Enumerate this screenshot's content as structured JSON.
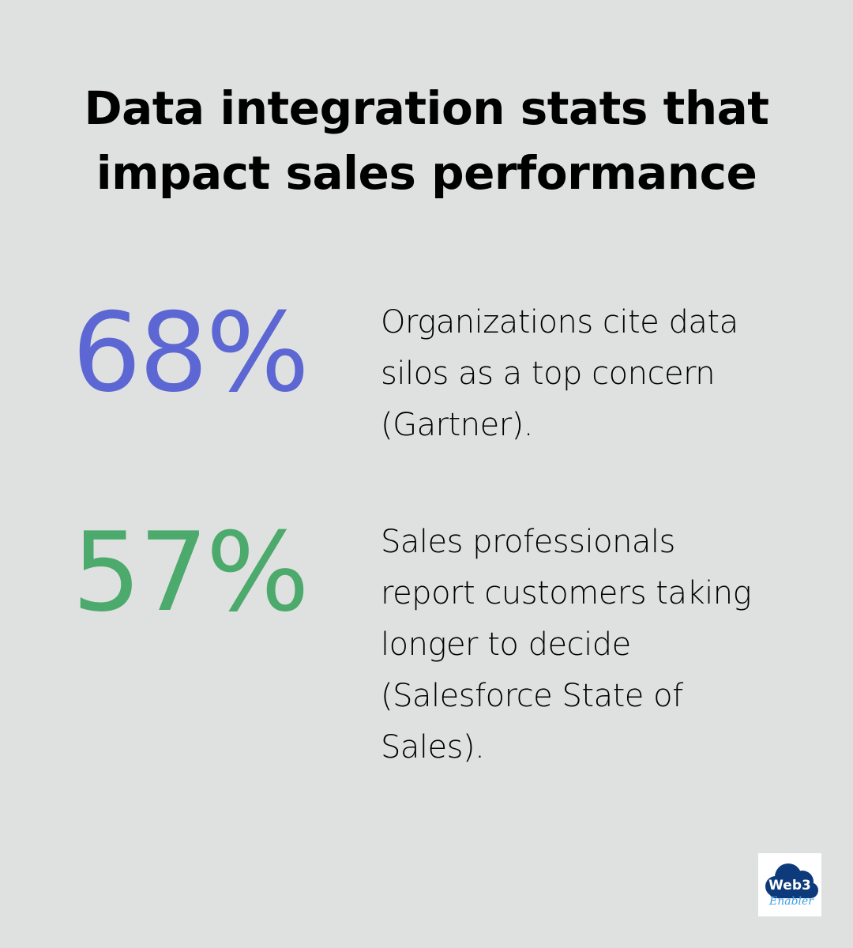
{
  "background_color": "#dfe1e0",
  "title": {
    "lines": [
      "Data integration stats that",
      "impact sales performance"
    ]
  },
  "stats": [
    {
      "value": "68%",
      "color": "#5d67d3",
      "lines": [
        "Organizations cite data",
        "silos as a top concern",
        "(Gartner)."
      ]
    },
    {
      "value": "57%",
      "color": "#4caa6c",
      "lines": [
        "Sales professionals",
        "report customers taking",
        "longer to decide",
        "(Salesforce State of",
        "Sales)."
      ]
    }
  ],
  "logo": {
    "text_top": "Web3",
    "text_bottom": "Enabler",
    "icon": "cloud-logo-icon",
    "cloud_color": "#0d3a7a",
    "script_color": "#3aa0e8"
  }
}
